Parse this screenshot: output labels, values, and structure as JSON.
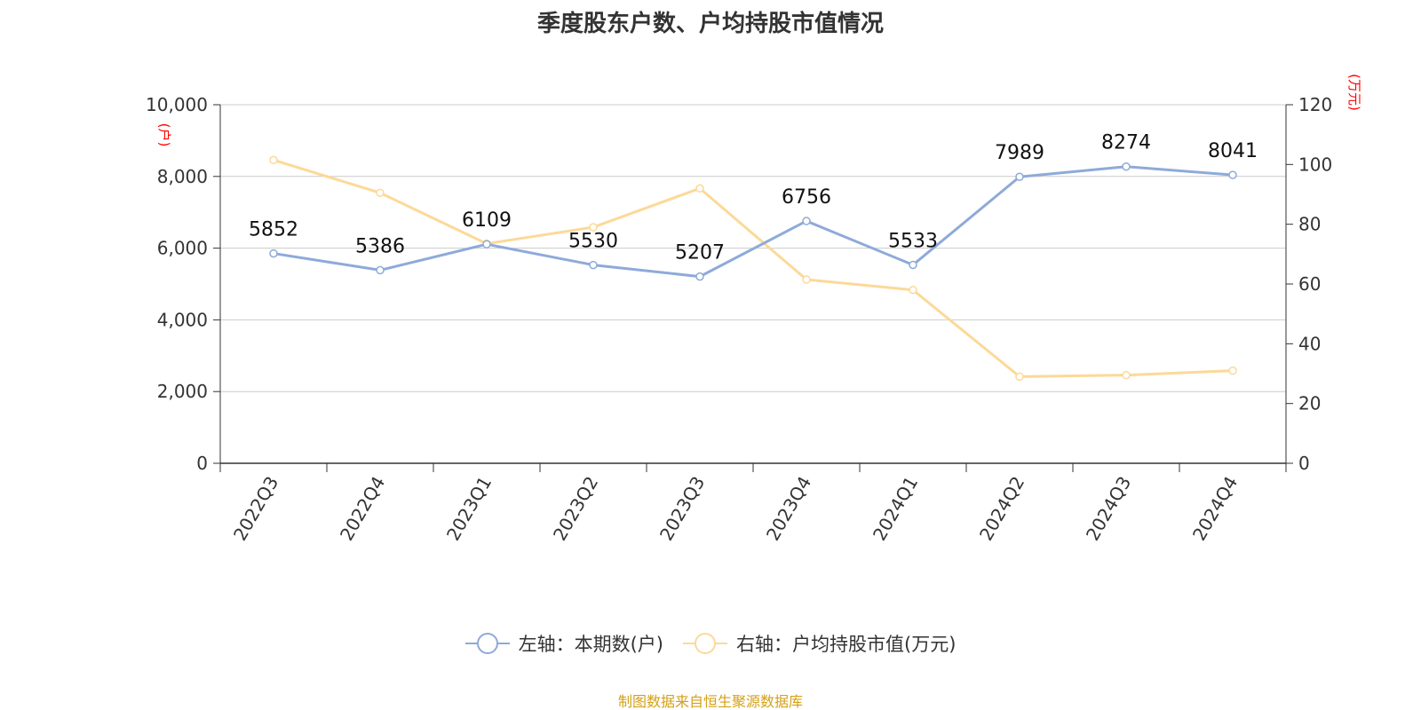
{
  "chart_data": {
    "type": "line",
    "title": "季度股东户数、户均持股市值情况",
    "categories": [
      "2022Q3",
      "2022Q4",
      "2023Q1",
      "2023Q2",
      "2023Q3",
      "2023Q4",
      "2024Q1",
      "2024Q2",
      "2024Q3",
      "2024Q4"
    ],
    "series": [
      {
        "name": "左轴：本期数(户)",
        "axis": "left",
        "color": "#8eaad9",
        "values": [
          5852,
          5386,
          6109,
          5530,
          5207,
          6756,
          5533,
          7989,
          8274,
          8041
        ],
        "show_labels": true
      },
      {
        "name": "右轴：户均持股市值(万元)",
        "axis": "right",
        "color": "#fcd998",
        "values": [
          101.5,
          90.5,
          73.5,
          79.0,
          92.0,
          61.5,
          58.0,
          29.0,
          29.5,
          31.0
        ],
        "show_labels": false
      }
    ],
    "y_left": {
      "label": "(户)",
      "range": [
        0,
        10000
      ],
      "ticks": [
        "0",
        "2,000",
        "4,000",
        "6,000",
        "8,000",
        "10,000"
      ]
    },
    "y_right": {
      "label": "(万元)",
      "range": [
        0,
        120
      ],
      "ticks": [
        "0",
        "20",
        "40",
        "60",
        "80",
        "100",
        "120"
      ]
    },
    "grid": true,
    "legend_position": "bottom"
  },
  "legend": {
    "left_series": "左轴：本期数(户)",
    "right_series": "右轴：户均持股市值(万元)"
  },
  "source": "制图数据来自恒生聚源数据库",
  "colors": {
    "left_axis_label": "#ff0000",
    "source_text": "#d4a017"
  }
}
